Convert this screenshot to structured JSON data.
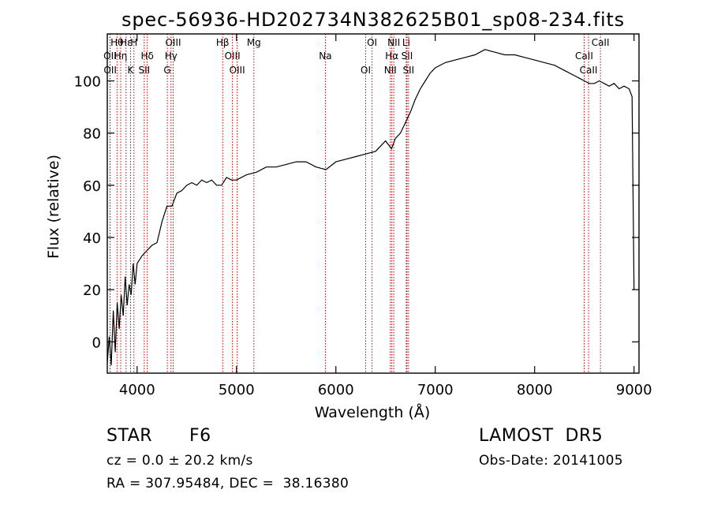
{
  "chart_data": {
    "type": "line",
    "title": "spec-56936-HD202734N382625B01_sp08-234.fits",
    "xlabel": "Wavelength (Å)",
    "ylabel": "Flux (relative)",
    "xlim": [
      3700,
      9050
    ],
    "ylim": [
      -12,
      118
    ],
    "x_ticks": [
      4000,
      5000,
      6000,
      7000,
      8000,
      9000
    ],
    "y_ticks": [
      0,
      20,
      40,
      60,
      80,
      100
    ],
    "grid": false,
    "series": [
      {
        "x": [
          3700,
          3720,
          3740,
          3760,
          3780,
          3800,
          3820,
          3840,
          3860,
          3880,
          3900,
          3920,
          3940,
          3960,
          3980,
          4000,
          4050,
          4100,
          4150,
          4200,
          4250,
          4300,
          4350,
          4400,
          4450,
          4500,
          4550,
          4600,
          4650,
          4700,
          4750,
          4800,
          4850,
          4900,
          4950,
          5000,
          5100,
          5200,
          5300,
          5400,
          5500,
          5600,
          5700,
          5800,
          5900,
          6000,
          6100,
          6200,
          6300,
          6400,
          6500,
          6560,
          6600,
          6650,
          6700,
          6750,
          6800,
          6850,
          6900,
          6950,
          7000,
          7100,
          7200,
          7300,
          7400,
          7500,
          7600,
          7700,
          7800,
          7900,
          8000,
          8100,
          8200,
          8300,
          8400,
          8450,
          8500,
          8550,
          8600,
          8650,
          8700,
          8750,
          8800,
          8850,
          8900,
          8950,
          8980,
          9000
        ],
        "y": [
          -8,
          2,
          -9,
          12,
          -4,
          15,
          5,
          18,
          10,
          25,
          14,
          22,
          18,
          30,
          22,
          30,
          33,
          35,
          37,
          38,
          46,
          52,
          52,
          57,
          58,
          60,
          61,
          60,
          62,
          61,
          62,
          60,
          60,
          63,
          62,
          62,
          64,
          65,
          67,
          67,
          68,
          69,
          69,
          67,
          66,
          69,
          70,
          71,
          72,
          73,
          77,
          74,
          78,
          80,
          84,
          88,
          93,
          97,
          100,
          103,
          105,
          107,
          108,
          109,
          110,
          112,
          111,
          110,
          110,
          109,
          108,
          107,
          106,
          104,
          102,
          101,
          100,
          99,
          99,
          100,
          99,
          98,
          99,
          97,
          98,
          97,
          94,
          20
        ]
      }
    ],
    "lines": [
      {
        "label": "Hθ",
        "x": 3798
      },
      {
        "label": "OII",
        "x": 3727
      },
      {
        "label": "OII",
        "x": 3729
      },
      {
        "label": "Hε",
        "x": 3889
      },
      {
        "label": "Hη",
        "x": 3835
      },
      {
        "label": "K",
        "x": 3934
      },
      {
        "label": "H",
        "x": 3968
      },
      {
        "label": "Hδ",
        "x": 4102
      },
      {
        "label": "SII",
        "x": 4072
      },
      {
        "label": "OIII",
        "x": 4363
      },
      {
        "label": "Hγ",
        "x": 4341
      },
      {
        "label": "G",
        "x": 4304
      },
      {
        "label": "Hβ",
        "x": 4861
      },
      {
        "label": "OIII",
        "x": 4959
      },
      {
        "label": "OIII",
        "x": 5007
      },
      {
        "label": "Mg",
        "x": 5175
      },
      {
        "label": "Na",
        "x": 5894
      },
      {
        "label": "OI",
        "x": 6300
      },
      {
        "label": "OI",
        "x": 6364
      },
      {
        "label": "Hα",
        "x": 6563
      },
      {
        "label": "NII",
        "x": 6548
      },
      {
        "label": "NII",
        "x": 6583
      },
      {
        "label": "SII",
        "x": 6716
      },
      {
        "label": "SII",
        "x": 6731
      },
      {
        "label": "Li",
        "x": 6708
      },
      {
        "label": "CaII",
        "x": 8498
      },
      {
        "label": "CaII",
        "x": 8542
      },
      {
        "label": "CaII",
        "x": 8662
      }
    ]
  },
  "info": {
    "class": "STAR",
    "subclass": "F6",
    "cz": "cz = 0.0 ± 20.2 km/s",
    "coords": "RA = 307.95484, DEC =  38.16380",
    "survey": "LAMOST  DR5",
    "obs_date": "Obs-Date: 20141005"
  }
}
